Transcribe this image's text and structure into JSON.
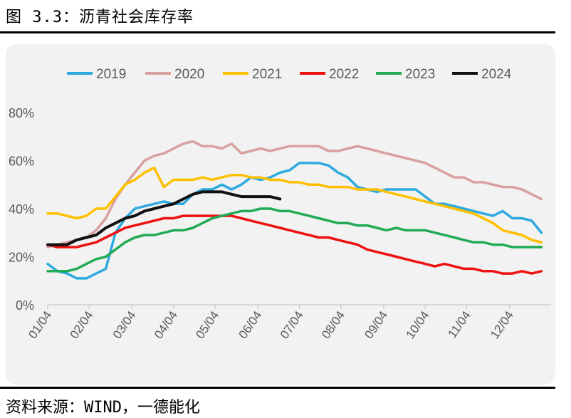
{
  "title": "图 3.3：沥青社会库存率",
  "source": "资料来源：WIND，一德能化",
  "chart_data": {
    "type": "line",
    "title": "",
    "xlabel": "",
    "ylabel": "",
    "ylim": [
      0,
      80
    ],
    "yticks": [
      "0%",
      "20%",
      "40%",
      "60%",
      "80%"
    ],
    "x_tick_labels": [
      "01/04",
      "02/04",
      "03/04",
      "04/04",
      "05/04",
      "06/04",
      "07/04",
      "08/04",
      "09/04",
      "10/04",
      "11/04",
      "12/04"
    ],
    "x_unit": "day of year (1 = 01/04)",
    "grid": false,
    "legend_position": "top",
    "series": [
      {
        "name": "2019",
        "color": "#2eaadf",
        "x": [
          1,
          8,
          15,
          22,
          29,
          36,
          43,
          50,
          57,
          64,
          71,
          78,
          85,
          92,
          99,
          106,
          113,
          120,
          127,
          134,
          141,
          148,
          155,
          162,
          169,
          176,
          183,
          190,
          197,
          204,
          211,
          218,
          225,
          232,
          239,
          246,
          253,
          260,
          267,
          274,
          281,
          288,
          295,
          302,
          309,
          316,
          323,
          330,
          337,
          344,
          351,
          358
        ],
        "y": [
          17,
          14,
          13,
          11,
          11,
          13,
          15,
          30,
          36,
          40,
          41,
          42,
          43,
          42,
          42,
          46,
          48,
          48,
          50,
          48,
          50,
          53,
          52,
          53,
          55,
          56,
          59,
          59,
          59,
          58,
          55,
          53,
          49,
          48,
          47,
          48,
          48,
          48,
          48,
          45,
          42,
          42,
          41,
          40,
          39,
          38,
          37,
          39,
          36,
          36,
          35,
          30
        ]
      },
      {
        "name": "2020",
        "color": "#d9a0a0",
        "x": [
          1,
          8,
          15,
          22,
          29,
          36,
          43,
          50,
          57,
          64,
          71,
          78,
          85,
          92,
          99,
          106,
          113,
          120,
          127,
          134,
          141,
          148,
          155,
          162,
          169,
          176,
          183,
          190,
          197,
          204,
          211,
          218,
          225,
          232,
          239,
          246,
          253,
          260,
          267,
          274,
          281,
          288,
          295,
          302,
          309,
          316,
          323,
          330,
          337,
          344,
          351,
          358
        ],
        "y": [
          24,
          25,
          26,
          27,
          28,
          31,
          36,
          44,
          50,
          55,
          60,
          62,
          63,
          65,
          67,
          68,
          66,
          66,
          65,
          67,
          63,
          64,
          65,
          64,
          65,
          66,
          66,
          66,
          66,
          64,
          64,
          65,
          66,
          65,
          64,
          63,
          62,
          61,
          60,
          59,
          57,
          55,
          53,
          53,
          51,
          51,
          50,
          49,
          49,
          48,
          46,
          44
        ]
      },
      {
        "name": "2021",
        "color": "#ffc000",
        "x": [
          1,
          8,
          15,
          22,
          29,
          36,
          43,
          50,
          57,
          64,
          71,
          78,
          85,
          92,
          99,
          106,
          113,
          120,
          127,
          134,
          141,
          148,
          155,
          162,
          169,
          176,
          183,
          190,
          197,
          204,
          211,
          218,
          225,
          232,
          239,
          246,
          253,
          260,
          267,
          274,
          281,
          288,
          295,
          302,
          309,
          316,
          323,
          330,
          337,
          344,
          351,
          358
        ],
        "y": [
          38,
          38,
          37,
          36,
          37,
          40,
          40,
          45,
          50,
          52,
          55,
          57,
          49,
          52,
          52,
          52,
          53,
          52,
          53,
          54,
          54,
          53,
          53,
          52,
          52,
          51,
          51,
          50,
          50,
          49,
          49,
          49,
          48,
          48,
          48,
          47,
          46,
          45,
          44,
          43,
          42,
          41,
          40,
          39,
          38,
          36,
          34,
          31,
          30,
          29,
          27,
          26
        ]
      },
      {
        "name": "2022",
        "color": "#ee1111",
        "x": [
          1,
          8,
          15,
          22,
          29,
          36,
          43,
          50,
          57,
          64,
          71,
          78,
          85,
          92,
          99,
          106,
          113,
          120,
          127,
          134,
          141,
          148,
          155,
          162,
          169,
          176,
          183,
          190,
          197,
          204,
          211,
          218,
          225,
          232,
          239,
          246,
          253,
          260,
          267,
          274,
          281,
          288,
          295,
          302,
          309,
          316,
          323,
          330,
          337,
          344,
          351,
          358
        ],
        "y": [
          25,
          24,
          24,
          24,
          25,
          26,
          28,
          30,
          32,
          33,
          34,
          35,
          36,
          36,
          37,
          37,
          37,
          37,
          37,
          37,
          36,
          35,
          34,
          33,
          32,
          31,
          30,
          29,
          28,
          28,
          27,
          26,
          25,
          23,
          22,
          21,
          20,
          19,
          18,
          17,
          16,
          17,
          16,
          15,
          15,
          14,
          14,
          13,
          13,
          14,
          13,
          14
        ]
      },
      {
        "name": "2023",
        "color": "#22aa55",
        "x": [
          1,
          8,
          15,
          22,
          29,
          36,
          43,
          50,
          57,
          64,
          71,
          78,
          85,
          92,
          99,
          106,
          113,
          120,
          127,
          134,
          141,
          148,
          155,
          162,
          169,
          176,
          183,
          190,
          197,
          204,
          211,
          218,
          225,
          232,
          239,
          246,
          253,
          260,
          267,
          274,
          281,
          288,
          295,
          302,
          309,
          316,
          323,
          330,
          337,
          344,
          351,
          358
        ],
        "y": [
          14,
          14,
          14,
          15,
          17,
          19,
          20,
          23,
          26,
          28,
          29,
          29,
          30,
          31,
          31,
          32,
          34,
          36,
          37,
          38,
          39,
          39,
          40,
          40,
          39,
          39,
          38,
          37,
          36,
          35,
          34,
          34,
          33,
          33,
          32,
          31,
          32,
          31,
          31,
          31,
          30,
          29,
          28,
          27,
          26,
          26,
          25,
          25,
          24,
          24,
          24,
          24
        ]
      },
      {
        "name": "2024",
        "color": "#111111",
        "x": [
          1,
          8,
          15,
          22,
          29,
          36,
          43,
          50,
          57,
          64,
          71,
          78,
          85,
          92,
          99,
          106,
          113,
          120,
          127,
          134,
          141,
          148,
          155,
          162,
          169
        ],
        "y": [
          25,
          25,
          25,
          27,
          28,
          29,
          32,
          34,
          36,
          37,
          39,
          40,
          41,
          42,
          44,
          46,
          47,
          47,
          47,
          46,
          45,
          45,
          45,
          45,
          44
        ]
      }
    ]
  }
}
